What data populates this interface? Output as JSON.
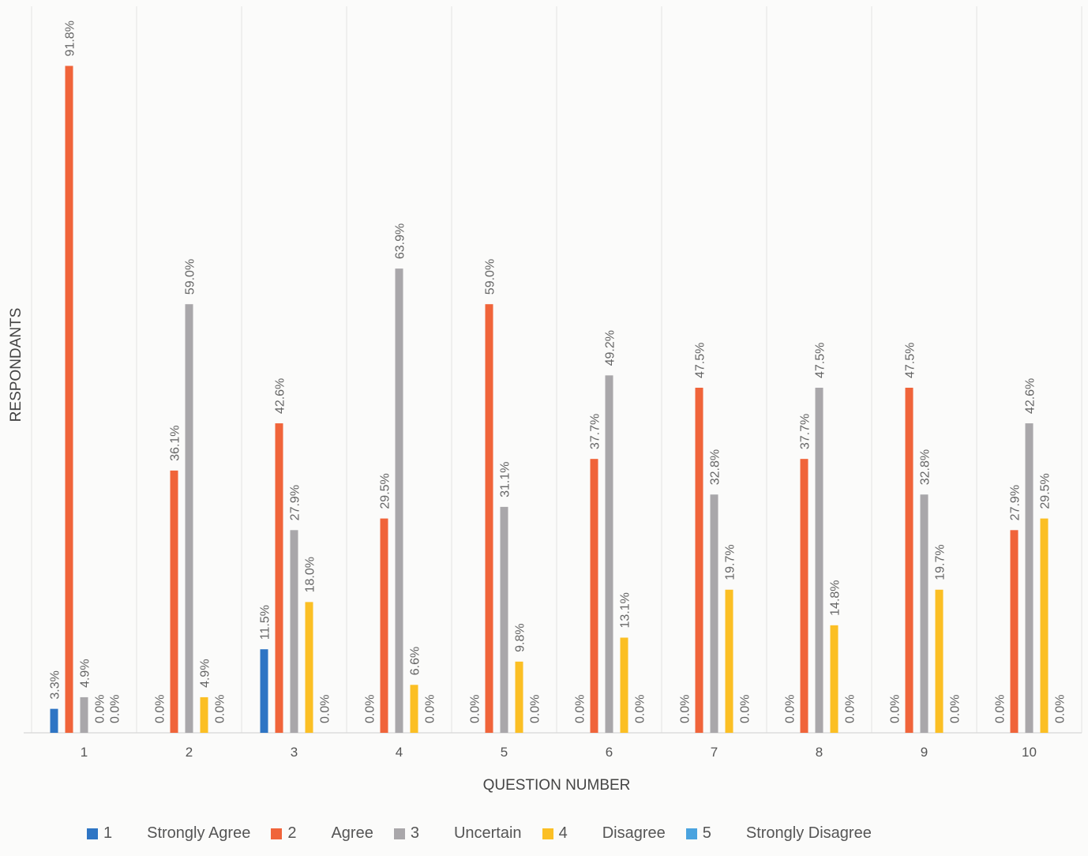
{
  "chart_data": {
    "type": "bar",
    "xlabel": "QUESTION NUMBER",
    "ylabel": "RESPONDANTS",
    "ylim": [
      0,
      100
    ],
    "grid": "vertical separators between questions",
    "legend_position": "bottom",
    "categories": [
      "1",
      "2",
      "3",
      "4",
      "5",
      "6",
      "7",
      "8",
      "9",
      "10"
    ],
    "series": [
      {
        "name": "1",
        "values": [
          3.3,
          0.0,
          11.5,
          0.0,
          0.0,
          0.0,
          0.0,
          0.0,
          0.0,
          0.0
        ],
        "labels": [
          "3.3%",
          "0.0%",
          "11.5%",
          "0.0%",
          "0.0%",
          "0.0%",
          "0.0%",
          "0.0%",
          "0.0%",
          "0.0%"
        ],
        "color": "#2e75c4"
      },
      {
        "name": "2",
        "values": [
          91.8,
          36.1,
          42.6,
          29.5,
          59.0,
          37.7,
          47.5,
          37.7,
          47.5,
          27.9
        ],
        "labels": [
          "91.8%",
          "36.1%",
          "42.6%",
          "29.5%",
          "59.0%",
          "37.7%",
          "47.5%",
          "37.7%",
          "47.5%",
          "27.9%"
        ],
        "color": "#f0643a"
      },
      {
        "name": "3",
        "values": [
          4.9,
          59.0,
          27.9,
          63.9,
          31.1,
          49.2,
          32.8,
          47.5,
          32.8,
          42.6
        ],
        "labels": [
          "4.9%",
          "59.0%",
          "27.9%",
          "63.9%",
          "31.1%",
          "49.2%",
          "32.8%",
          "47.5%",
          "32.8%",
          "42.6%"
        ],
        "color": "#a9a7aa"
      },
      {
        "name": "4",
        "values": [
          0.0,
          4.9,
          18.0,
          6.6,
          9.8,
          13.1,
          19.7,
          14.8,
          19.7,
          29.5
        ],
        "labels": [
          "0.0%",
          "4.9%",
          "18.0%",
          "6.6%",
          "9.8%",
          "13.1%",
          "19.7%",
          "14.8%",
          "19.7%",
          "29.5%"
        ],
        "color": "#fbbf24"
      },
      {
        "name": "5",
        "values": [
          0.0,
          0.0,
          0.0,
          0.0,
          0.0,
          0.0,
          0.0,
          0.0,
          0.0,
          0.0
        ],
        "labels": [
          "0.0%",
          "0.0%",
          "0.0%",
          "0.0%",
          "0.0%",
          "0.0%",
          "0.0%",
          "0.0%",
          "0.0%",
          "0.0%"
        ],
        "color": "#4aa3df"
      }
    ]
  },
  "legend": [
    {
      "key": "1",
      "text": "Strongly Agree",
      "color": "#2e75c4"
    },
    {
      "key": "2",
      "text": "Agree",
      "color": "#f0643a"
    },
    {
      "key": "3",
      "text": "Uncertain",
      "color": "#a9a7aa"
    },
    {
      "key": "4",
      "text": "Disagree",
      "color": "#fbbf24"
    },
    {
      "key": "5",
      "text": "Strongly Disagree",
      "color": "#4aa3df"
    }
  ]
}
